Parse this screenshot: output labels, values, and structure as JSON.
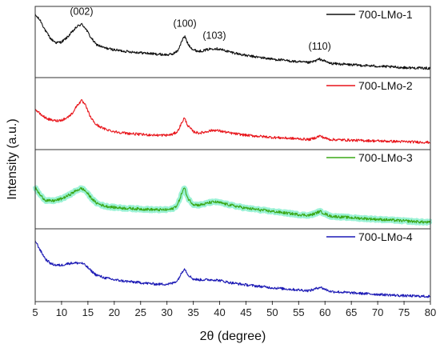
{
  "chart_data": {
    "type": "line",
    "layout": "stacked-panels",
    "xlabel": "2θ (degree)",
    "ylabel": "Intensity (a.u.)",
    "xlim": [
      5,
      80
    ],
    "xticks": [
      5,
      10,
      15,
      20,
      25,
      30,
      35,
      40,
      45,
      50,
      55,
      60,
      65,
      70,
      75,
      80
    ],
    "y_ticks_shown": false,
    "legend_placement": "top-right of each panel",
    "series": [
      {
        "name": "700-LMo-1",
        "color": "#111111",
        "halo_color": "",
        "points": [
          [
            5,
            0.88
          ],
          [
            6,
            0.8
          ],
          [
            7,
            0.65
          ],
          [
            8,
            0.54
          ],
          [
            9,
            0.49
          ],
          [
            10,
            0.5
          ],
          [
            11,
            0.56
          ],
          [
            12,
            0.64
          ],
          [
            13,
            0.72
          ],
          [
            13.8,
            0.75
          ],
          [
            14.5,
            0.7
          ],
          [
            15.5,
            0.57
          ],
          [
            16.5,
            0.47
          ],
          [
            18,
            0.42
          ],
          [
            20,
            0.39
          ],
          [
            22,
            0.37
          ],
          [
            25,
            0.35
          ],
          [
            28,
            0.33
          ],
          [
            30,
            0.32
          ],
          [
            31,
            0.33
          ],
          [
            32,
            0.37
          ],
          [
            33,
            0.54
          ],
          [
            33.4,
            0.58
          ],
          [
            34,
            0.47
          ],
          [
            35,
            0.39
          ],
          [
            36,
            0.37
          ],
          [
            37,
            0.38
          ],
          [
            38,
            0.4
          ],
          [
            39,
            0.41
          ],
          [
            40,
            0.4
          ],
          [
            42,
            0.36
          ],
          [
            45,
            0.31
          ],
          [
            50,
            0.26
          ],
          [
            55,
            0.22
          ],
          [
            57,
            0.21
          ],
          [
            58,
            0.23
          ],
          [
            59,
            0.26
          ],
          [
            60,
            0.23
          ],
          [
            61,
            0.2
          ],
          [
            65,
            0.18
          ],
          [
            70,
            0.16
          ],
          [
            75,
            0.14
          ],
          [
            80,
            0.13
          ]
        ],
        "peaks": [
          {
            "label": "(002)",
            "x": 13.8,
            "y": 0.75
          },
          {
            "label": "(100)",
            "x": 33.4,
            "y": 0.58
          },
          {
            "label": "(103)",
            "x": 39,
            "y": 0.41
          },
          {
            "label": "(110)",
            "x": 59,
            "y": 0.26
          }
        ]
      },
      {
        "name": "700-LMo-2",
        "color": "#e8141a",
        "halo_color": "",
        "points": [
          [
            5,
            0.56
          ],
          [
            6,
            0.49
          ],
          [
            7,
            0.44
          ],
          [
            8,
            0.41
          ],
          [
            9,
            0.4
          ],
          [
            10,
            0.41
          ],
          [
            11,
            0.44
          ],
          [
            12,
            0.5
          ],
          [
            13,
            0.62
          ],
          [
            13.8,
            0.68
          ],
          [
            14.5,
            0.62
          ],
          [
            15.5,
            0.45
          ],
          [
            16.5,
            0.35
          ],
          [
            18,
            0.29
          ],
          [
            20,
            0.25
          ],
          [
            22,
            0.23
          ],
          [
            25,
            0.21
          ],
          [
            28,
            0.2
          ],
          [
            30,
            0.2
          ],
          [
            31,
            0.21
          ],
          [
            32,
            0.25
          ],
          [
            33,
            0.4
          ],
          [
            33.3,
            0.44
          ],
          [
            34,
            0.33
          ],
          [
            35,
            0.25
          ],
          [
            36,
            0.23
          ],
          [
            37,
            0.24
          ],
          [
            38,
            0.26
          ],
          [
            39,
            0.27
          ],
          [
            40,
            0.26
          ],
          [
            42,
            0.23
          ],
          [
            45,
            0.2
          ],
          [
            50,
            0.17
          ],
          [
            55,
            0.15
          ],
          [
            57,
            0.14
          ],
          [
            58,
            0.16
          ],
          [
            59,
            0.19
          ],
          [
            60,
            0.16
          ],
          [
            61,
            0.14
          ],
          [
            65,
            0.13
          ],
          [
            70,
            0.12
          ],
          [
            75,
            0.11
          ],
          [
            80,
            0.1
          ]
        ],
        "peaks": []
      },
      {
        "name": "700-LMo-3",
        "color": "#3aa816",
        "halo_color": "#9cf2d6",
        "points": [
          [
            5,
            0.52
          ],
          [
            6,
            0.42
          ],
          [
            7,
            0.36
          ],
          [
            8,
            0.35
          ],
          [
            9,
            0.36
          ],
          [
            10,
            0.38
          ],
          [
            11,
            0.41
          ],
          [
            12,
            0.45
          ],
          [
            13,
            0.49
          ],
          [
            13.8,
            0.51
          ],
          [
            14.5,
            0.48
          ],
          [
            15.5,
            0.4
          ],
          [
            16.5,
            0.33
          ],
          [
            18,
            0.29
          ],
          [
            20,
            0.27
          ],
          [
            22,
            0.26
          ],
          [
            25,
            0.25
          ],
          [
            28,
            0.24
          ],
          [
            30,
            0.24
          ],
          [
            31,
            0.25
          ],
          [
            32,
            0.3
          ],
          [
            33,
            0.48
          ],
          [
            33.3,
            0.52
          ],
          [
            34,
            0.38
          ],
          [
            35,
            0.31
          ],
          [
            36,
            0.3
          ],
          [
            37,
            0.31
          ],
          [
            38,
            0.33
          ],
          [
            39,
            0.34
          ],
          [
            40,
            0.33
          ],
          [
            42,
            0.3
          ],
          [
            45,
            0.26
          ],
          [
            50,
            0.22
          ],
          [
            55,
            0.18
          ],
          [
            57,
            0.17
          ],
          [
            58,
            0.19
          ],
          [
            59,
            0.22
          ],
          [
            60,
            0.19
          ],
          [
            61,
            0.16
          ],
          [
            65,
            0.14
          ],
          [
            70,
            0.12
          ],
          [
            75,
            0.1
          ],
          [
            80,
            0.08
          ]
        ],
        "peaks": []
      },
      {
        "name": "700-LMo-4",
        "color": "#1c1ab5",
        "halo_color": "",
        "points": [
          [
            5,
            0.84
          ],
          [
            6,
            0.7
          ],
          [
            7,
            0.58
          ],
          [
            8,
            0.52
          ],
          [
            9,
            0.5
          ],
          [
            10,
            0.5
          ],
          [
            11,
            0.52
          ],
          [
            12,
            0.53
          ],
          [
            13,
            0.53
          ],
          [
            13.8,
            0.53
          ],
          [
            14.5,
            0.5
          ],
          [
            15.5,
            0.43
          ],
          [
            16.5,
            0.37
          ],
          [
            18,
            0.33
          ],
          [
            20,
            0.3
          ],
          [
            22,
            0.28
          ],
          [
            25,
            0.26
          ],
          [
            28,
            0.24
          ],
          [
            30,
            0.24
          ],
          [
            31,
            0.25
          ],
          [
            32,
            0.29
          ],
          [
            33,
            0.42
          ],
          [
            33.3,
            0.46
          ],
          [
            34,
            0.37
          ],
          [
            35,
            0.31
          ],
          [
            36,
            0.3
          ],
          [
            37,
            0.3
          ],
          [
            38,
            0.3
          ],
          [
            39,
            0.3
          ],
          [
            40,
            0.29
          ],
          [
            42,
            0.26
          ],
          [
            45,
            0.23
          ],
          [
            50,
            0.19
          ],
          [
            55,
            0.16
          ],
          [
            57,
            0.15
          ],
          [
            58,
            0.17
          ],
          [
            59,
            0.2
          ],
          [
            60,
            0.17
          ],
          [
            61,
            0.14
          ],
          [
            65,
            0.12
          ],
          [
            70,
            0.1
          ],
          [
            75,
            0.08
          ],
          [
            80,
            0.07
          ]
        ],
        "peaks": []
      }
    ]
  }
}
